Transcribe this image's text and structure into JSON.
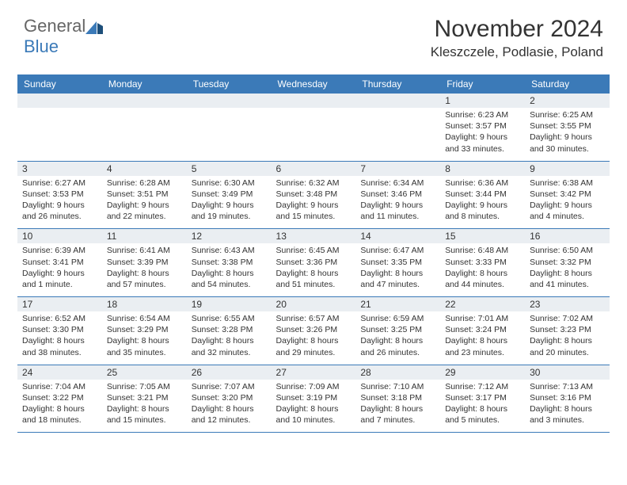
{
  "brand": {
    "part1": "General",
    "part2": "Blue"
  },
  "title": "November 2024",
  "location": "Kleszczele, Podlasie, Poland",
  "colors": {
    "accent": "#3b7ab8",
    "header_bg": "#3b7ab8",
    "header_text": "#ffffff",
    "daynum_bg": "#eaeef2",
    "text": "#333333",
    "background": "#ffffff",
    "logo_gray": "#666666"
  },
  "day_names": [
    "Sunday",
    "Monday",
    "Tuesday",
    "Wednesday",
    "Thursday",
    "Friday",
    "Saturday"
  ],
  "weeks": [
    [
      {
        "n": "",
        "sr": "",
        "ss": "",
        "dl": ""
      },
      {
        "n": "",
        "sr": "",
        "ss": "",
        "dl": ""
      },
      {
        "n": "",
        "sr": "",
        "ss": "",
        "dl": ""
      },
      {
        "n": "",
        "sr": "",
        "ss": "",
        "dl": ""
      },
      {
        "n": "",
        "sr": "",
        "ss": "",
        "dl": ""
      },
      {
        "n": "1",
        "sr": "Sunrise: 6:23 AM",
        "ss": "Sunset: 3:57 PM",
        "dl": "Daylight: 9 hours and 33 minutes."
      },
      {
        "n": "2",
        "sr": "Sunrise: 6:25 AM",
        "ss": "Sunset: 3:55 PM",
        "dl": "Daylight: 9 hours and 30 minutes."
      }
    ],
    [
      {
        "n": "3",
        "sr": "Sunrise: 6:27 AM",
        "ss": "Sunset: 3:53 PM",
        "dl": "Daylight: 9 hours and 26 minutes."
      },
      {
        "n": "4",
        "sr": "Sunrise: 6:28 AM",
        "ss": "Sunset: 3:51 PM",
        "dl": "Daylight: 9 hours and 22 minutes."
      },
      {
        "n": "5",
        "sr": "Sunrise: 6:30 AM",
        "ss": "Sunset: 3:49 PM",
        "dl": "Daylight: 9 hours and 19 minutes."
      },
      {
        "n": "6",
        "sr": "Sunrise: 6:32 AM",
        "ss": "Sunset: 3:48 PM",
        "dl": "Daylight: 9 hours and 15 minutes."
      },
      {
        "n": "7",
        "sr": "Sunrise: 6:34 AM",
        "ss": "Sunset: 3:46 PM",
        "dl": "Daylight: 9 hours and 11 minutes."
      },
      {
        "n": "8",
        "sr": "Sunrise: 6:36 AM",
        "ss": "Sunset: 3:44 PM",
        "dl": "Daylight: 9 hours and 8 minutes."
      },
      {
        "n": "9",
        "sr": "Sunrise: 6:38 AM",
        "ss": "Sunset: 3:42 PM",
        "dl": "Daylight: 9 hours and 4 minutes."
      }
    ],
    [
      {
        "n": "10",
        "sr": "Sunrise: 6:39 AM",
        "ss": "Sunset: 3:41 PM",
        "dl": "Daylight: 9 hours and 1 minute."
      },
      {
        "n": "11",
        "sr": "Sunrise: 6:41 AM",
        "ss": "Sunset: 3:39 PM",
        "dl": "Daylight: 8 hours and 57 minutes."
      },
      {
        "n": "12",
        "sr": "Sunrise: 6:43 AM",
        "ss": "Sunset: 3:38 PM",
        "dl": "Daylight: 8 hours and 54 minutes."
      },
      {
        "n": "13",
        "sr": "Sunrise: 6:45 AM",
        "ss": "Sunset: 3:36 PM",
        "dl": "Daylight: 8 hours and 51 minutes."
      },
      {
        "n": "14",
        "sr": "Sunrise: 6:47 AM",
        "ss": "Sunset: 3:35 PM",
        "dl": "Daylight: 8 hours and 47 minutes."
      },
      {
        "n": "15",
        "sr": "Sunrise: 6:48 AM",
        "ss": "Sunset: 3:33 PM",
        "dl": "Daylight: 8 hours and 44 minutes."
      },
      {
        "n": "16",
        "sr": "Sunrise: 6:50 AM",
        "ss": "Sunset: 3:32 PM",
        "dl": "Daylight: 8 hours and 41 minutes."
      }
    ],
    [
      {
        "n": "17",
        "sr": "Sunrise: 6:52 AM",
        "ss": "Sunset: 3:30 PM",
        "dl": "Daylight: 8 hours and 38 minutes."
      },
      {
        "n": "18",
        "sr": "Sunrise: 6:54 AM",
        "ss": "Sunset: 3:29 PM",
        "dl": "Daylight: 8 hours and 35 minutes."
      },
      {
        "n": "19",
        "sr": "Sunrise: 6:55 AM",
        "ss": "Sunset: 3:28 PM",
        "dl": "Daylight: 8 hours and 32 minutes."
      },
      {
        "n": "20",
        "sr": "Sunrise: 6:57 AM",
        "ss": "Sunset: 3:26 PM",
        "dl": "Daylight: 8 hours and 29 minutes."
      },
      {
        "n": "21",
        "sr": "Sunrise: 6:59 AM",
        "ss": "Sunset: 3:25 PM",
        "dl": "Daylight: 8 hours and 26 minutes."
      },
      {
        "n": "22",
        "sr": "Sunrise: 7:01 AM",
        "ss": "Sunset: 3:24 PM",
        "dl": "Daylight: 8 hours and 23 minutes."
      },
      {
        "n": "23",
        "sr": "Sunrise: 7:02 AM",
        "ss": "Sunset: 3:23 PM",
        "dl": "Daylight: 8 hours and 20 minutes."
      }
    ],
    [
      {
        "n": "24",
        "sr": "Sunrise: 7:04 AM",
        "ss": "Sunset: 3:22 PM",
        "dl": "Daylight: 8 hours and 18 minutes."
      },
      {
        "n": "25",
        "sr": "Sunrise: 7:05 AM",
        "ss": "Sunset: 3:21 PM",
        "dl": "Daylight: 8 hours and 15 minutes."
      },
      {
        "n": "26",
        "sr": "Sunrise: 7:07 AM",
        "ss": "Sunset: 3:20 PM",
        "dl": "Daylight: 8 hours and 12 minutes."
      },
      {
        "n": "27",
        "sr": "Sunrise: 7:09 AM",
        "ss": "Sunset: 3:19 PM",
        "dl": "Daylight: 8 hours and 10 minutes."
      },
      {
        "n": "28",
        "sr": "Sunrise: 7:10 AM",
        "ss": "Sunset: 3:18 PM",
        "dl": "Daylight: 8 hours and 7 minutes."
      },
      {
        "n": "29",
        "sr": "Sunrise: 7:12 AM",
        "ss": "Sunset: 3:17 PM",
        "dl": "Daylight: 8 hours and 5 minutes."
      },
      {
        "n": "30",
        "sr": "Sunrise: 7:13 AM",
        "ss": "Sunset: 3:16 PM",
        "dl": "Daylight: 8 hours and 3 minutes."
      }
    ]
  ]
}
